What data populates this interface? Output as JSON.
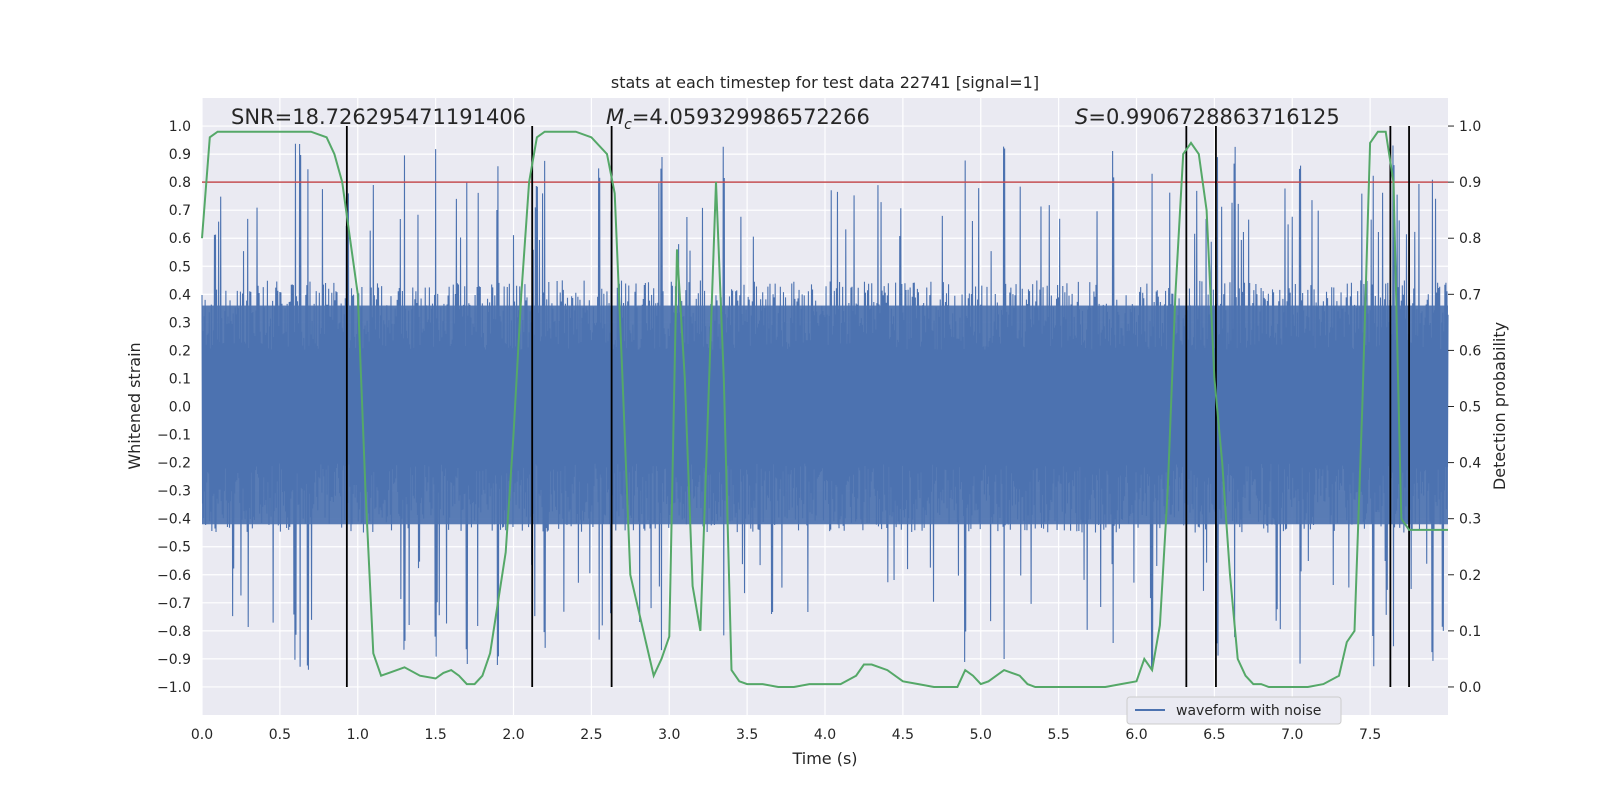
{
  "chart_data": {
    "type": "line",
    "title": "stats at each timestep for test data 22741 [signal=1]",
    "xlabel": "Time (s)",
    "ylabel": "Whitened strain",
    "y2label": "Detection probability",
    "xlim": [
      0.0,
      8.0
    ],
    "ylim": [
      -1.1,
      1.1
    ],
    "y2lim": [
      -0.05,
      1.05
    ],
    "x_ticks": [
      "0.0",
      "0.5",
      "1.0",
      "1.5",
      "2.0",
      "2.5",
      "3.0",
      "3.5",
      "4.0",
      "4.5",
      "5.0",
      "5.5",
      "6.0",
      "6.5",
      "7.0",
      "7.5"
    ],
    "y_ticks": [
      "1.0",
      "0.9",
      "0.8",
      "0.7",
      "0.6",
      "0.5",
      "0.4",
      "0.3",
      "0.2",
      "0.1",
      "0.0",
      "-0.1",
      "-0.2",
      "-0.3",
      "-0.4",
      "-0.5",
      "-0.6",
      "-0.7",
      "-0.8",
      "-0.9",
      "-1.0"
    ],
    "y2_ticks": [
      "1.0",
      "0.9",
      "0.8",
      "0.7",
      "0.6",
      "0.5",
      "0.4",
      "0.3",
      "0.2",
      "0.1",
      "0.0"
    ],
    "annotations": {
      "snr": "SNR=18.726295471191406",
      "mc_symbol": "M",
      "mc_sub": "c",
      "mc_value": "=4.059329986572266",
      "s_symbol": "S",
      "s_value": "=0.9906728863716125"
    },
    "threshold": 0.9,
    "detection_boundaries": [
      0.93,
      2.12,
      2.63,
      6.32,
      6.51,
      7.63,
      7.75
    ],
    "waveform": {
      "name": "waveform with noise",
      "color": "#4c72b0",
      "core_amplitude": [
        -0.45,
        0.45
      ],
      "envelope_max": [
        -1.0,
        1.0
      ],
      "spike_times": [
        0.6,
        0.63,
        0.68,
        1.3,
        1.5,
        1.7,
        1.9,
        2.2,
        2.55,
        2.95,
        3.35,
        4.9,
        5.15,
        5.85,
        6.1,
        6.52,
        6.63,
        7.05,
        7.52,
        7.65,
        7.9
      ]
    },
    "detection_probability": {
      "color": "#55a868",
      "x": [
        0.0,
        0.05,
        0.1,
        0.15,
        0.2,
        0.3,
        0.4,
        0.5,
        0.6,
        0.7,
        0.8,
        0.85,
        0.9,
        0.94,
        1.0,
        1.05,
        1.1,
        1.15,
        1.2,
        1.3,
        1.4,
        1.5,
        1.55,
        1.6,
        1.65,
        1.7,
        1.75,
        1.8,
        1.85,
        1.9,
        1.95,
        2.0,
        2.05,
        2.1,
        2.15,
        2.2,
        2.3,
        2.4,
        2.5,
        2.6,
        2.65,
        2.7,
        2.75,
        2.8,
        2.85,
        2.9,
        2.95,
        3.0,
        3.05,
        3.1,
        3.15,
        3.2,
        3.25,
        3.3,
        3.35,
        3.4,
        3.45,
        3.5,
        3.6,
        3.7,
        3.8,
        3.9,
        4.0,
        4.1,
        4.2,
        4.25,
        4.3,
        4.4,
        4.5,
        4.6,
        4.7,
        4.8,
        4.85,
        4.9,
        4.95,
        5.0,
        5.05,
        5.1,
        5.15,
        5.2,
        5.25,
        5.3,
        5.35,
        5.4,
        5.5,
        5.6,
        5.7,
        5.8,
        5.9,
        6.0,
        6.05,
        6.1,
        6.15,
        6.2,
        6.25,
        6.3,
        6.35,
        6.4,
        6.45,
        6.5,
        6.55,
        6.6,
        6.65,
        6.7,
        6.75,
        6.8,
        6.85,
        6.9,
        7.0,
        7.1,
        7.2,
        7.3,
        7.35,
        7.4,
        7.45,
        7.5,
        7.55,
        7.6,
        7.65,
        7.7,
        7.75,
        7.8,
        7.85,
        7.9,
        7.95,
        8.0
      ],
      "y": [
        0.8,
        0.98,
        0.99,
        0.99,
        0.99,
        0.99,
        0.99,
        0.99,
        0.99,
        0.99,
        0.98,
        0.95,
        0.9,
        0.82,
        0.7,
        0.35,
        0.06,
        0.02,
        0.025,
        0.035,
        0.02,
        0.015,
        0.025,
        0.03,
        0.02,
        0.005,
        0.005,
        0.02,
        0.06,
        0.15,
        0.24,
        0.45,
        0.7,
        0.9,
        0.98,
        0.99,
        0.99,
        0.99,
        0.98,
        0.95,
        0.88,
        0.55,
        0.2,
        0.14,
        0.08,
        0.02,
        0.05,
        0.09,
        0.78,
        0.55,
        0.18,
        0.1,
        0.5,
        0.9,
        0.55,
        0.03,
        0.01,
        0.005,
        0.005,
        0.0,
        0.0,
        0.005,
        0.005,
        0.005,
        0.02,
        0.04,
        0.04,
        0.03,
        0.01,
        0.005,
        0.0,
        0.0,
        0.0,
        0.03,
        0.02,
        0.005,
        0.01,
        0.02,
        0.03,
        0.025,
        0.02,
        0.005,
        0.0,
        0.0,
        0.0,
        0.0,
        0.0,
        0.0,
        0.005,
        0.01,
        0.05,
        0.03,
        0.11,
        0.35,
        0.7,
        0.95,
        0.97,
        0.95,
        0.85,
        0.55,
        0.4,
        0.2,
        0.05,
        0.02,
        0.005,
        0.005,
        0.0,
        0.0,
        0.0,
        0.0,
        0.005,
        0.02,
        0.08,
        0.1,
        0.5,
        0.97,
        0.99,
        0.99,
        0.9,
        0.3,
        0.28,
        0.28,
        0.28,
        0.28,
        0.28,
        0.28
      ]
    }
  }
}
